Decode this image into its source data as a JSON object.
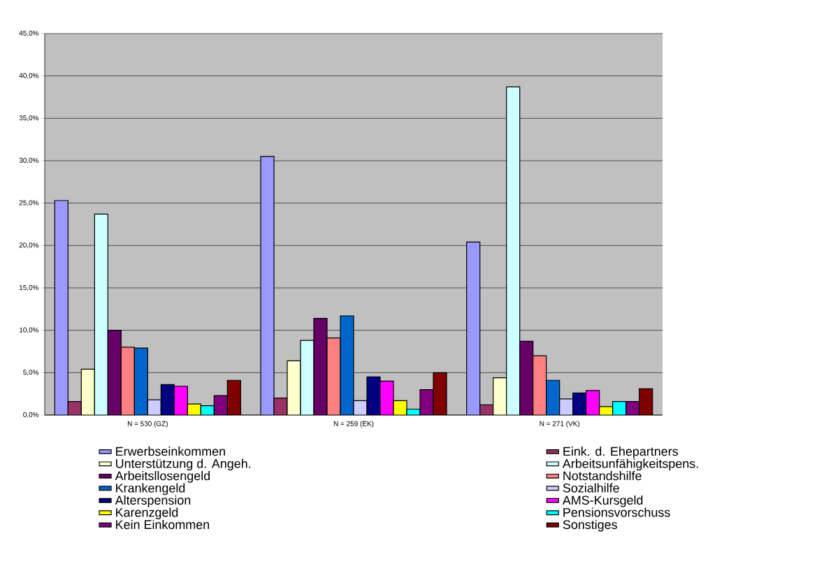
{
  "chart_data": {
    "type": "bar",
    "categories": [
      "N = 530 (GZ)",
      "N = 259 (EK)",
      "N = 271 (VK)"
    ],
    "series": [
      {
        "name": "Erwerbseinkommen",
        "color": "#9999ff",
        "values": [
          25.3,
          30.5,
          20.4
        ]
      },
      {
        "name": "Eink. d. Ehepartners",
        "color": "#993366",
        "values": [
          1.6,
          2.0,
          1.2
        ]
      },
      {
        "name": "Unterstützung d. Angeh.",
        "color": "#ffffcc",
        "values": [
          5.4,
          6.4,
          4.4
        ]
      },
      {
        "name": "Arbeitsunfähigkeitspens.",
        "color": "#ccffff",
        "values": [
          23.7,
          8.8,
          38.7
        ]
      },
      {
        "name": "Arbeitsllosengeld",
        "color": "#660066",
        "values": [
          10.0,
          11.4,
          8.7
        ]
      },
      {
        "name": "Notstandshilfe",
        "color": "#ff8080",
        "values": [
          8.0,
          9.1,
          7.0
        ]
      },
      {
        "name": "Krankengeld",
        "color": "#0066cc",
        "values": [
          7.9,
          11.7,
          4.1
        ]
      },
      {
        "name": "Sozialhilfe",
        "color": "#ccccff",
        "values": [
          1.8,
          1.7,
          1.9
        ]
      },
      {
        "name": "Alterspension",
        "color": "#000080",
        "values": [
          3.6,
          4.5,
          2.6
        ]
      },
      {
        "name": "AMS-Kursgeld",
        "color": "#ff00ff",
        "values": [
          3.4,
          4.0,
          2.9
        ]
      },
      {
        "name": "Karenzgeld",
        "color": "#ffff00",
        "values": [
          1.3,
          1.7,
          1.0
        ]
      },
      {
        "name": "Pensionsvorschuss",
        "color": "#00ffff",
        "values": [
          1.1,
          0.7,
          1.6
        ]
      },
      {
        "name": "Kein Einkommen",
        "color": "#800080",
        "values": [
          2.3,
          3.0,
          1.6
        ]
      },
      {
        "name": "Sonstiges",
        "color": "#800000",
        "values": [
          4.1,
          5.0,
          3.1
        ]
      }
    ],
    "ylim": [
      0,
      45
    ],
    "yticks": [
      {
        "value": 0,
        "label": "0,0%"
      },
      {
        "value": 5,
        "label": "5,0%"
      },
      {
        "value": 10,
        "label": "10,0%"
      },
      {
        "value": 15,
        "label": "15,0%"
      },
      {
        "value": 20,
        "label": "20,0%"
      },
      {
        "value": 25,
        "label": "25,0%"
      },
      {
        "value": 30,
        "label": "30,0%"
      },
      {
        "value": 35,
        "label": "35,0%"
      },
      {
        "value": 40,
        "label": "40,0%"
      },
      {
        "value": 45,
        "label": "45,0%"
      }
    ],
    "grid": "y",
    "legend": "bottom"
  }
}
